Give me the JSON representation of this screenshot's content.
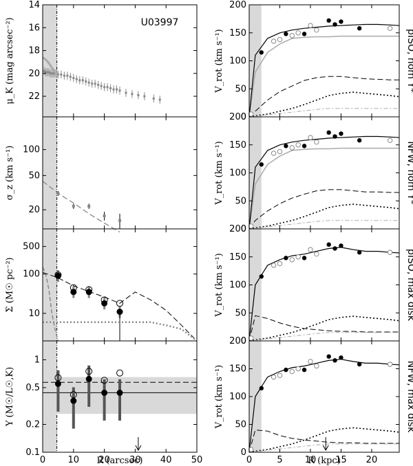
{
  "chart_data": {
    "type": "multi-panel scatter/line",
    "galaxy_id": "U03997",
    "colors": {
      "shade": "#d9d9d9",
      "gray_points": "#888888",
      "light_gray": "#aaaaaa",
      "black": "#000000"
    },
    "left_panels": [
      {
        "id": "mu",
        "ylabel": "μ_K (mag arcsec⁻²)",
        "y_reversed": true,
        "ylim": [
          23.8,
          14
        ],
        "yticks": [
          "14",
          "16",
          "18",
          "20",
          "22"
        ],
        "ytick_values": [
          14,
          16,
          18,
          20,
          22
        ],
        "series": [
          {
            "name": "photometry",
            "x": [
              0.5,
              1,
              1.5,
              2,
              2.5,
              3,
              3.5,
              4,
              4.5,
              5,
              6,
              7,
              8,
              9,
              10,
              11,
              12,
              13,
              14,
              15,
              16,
              17,
              18,
              19,
              20,
              21,
              22,
              23,
              24,
              25,
              27,
              29,
              31,
              33,
              36,
              38
            ],
            "y": [
              19.8,
              19.9,
              19.9,
              19.9,
              20.0,
              20.0,
              20.0,
              20.0,
              20.0,
              20.1,
              20.1,
              20.2,
              20.2,
              20.3,
              20.4,
              20.5,
              20.6,
              20.6,
              20.7,
              20.8,
              20.9,
              20.9,
              21.0,
              21.1,
              21.2,
              21.2,
              21.3,
              21.4,
              21.4,
              21.5,
              21.7,
              21.8,
              21.9,
              22.0,
              22.2,
              22.3
            ]
          },
          {
            "name": "bulge model",
            "x": [
              0,
              1,
              2,
              3,
              4,
              5
            ],
            "y": [
              18.6,
              18.8,
              19.1,
              19.5,
              19.9,
              20.3
            ]
          }
        ]
      },
      {
        "id": "sigma",
        "ylabel": "σ_z (km s⁻¹)",
        "y_scale": "log",
        "ylim": [
          12,
          240
        ],
        "yticks": [
          "20",
          "50",
          "100"
        ],
        "ytick_values": [
          20,
          50,
          100
        ],
        "series": [
          {
            "name": "sigma_z",
            "x": [
              5,
              10,
              15,
              20,
              25
            ],
            "y": [
              31,
              22,
              22,
              17,
              15
            ],
            "err": [
              2,
              1.5,
              1.5,
              2,
              3
            ]
          },
          {
            "name": "model",
            "x": [
              0,
              5,
              10,
              15,
              20,
              25
            ],
            "y": [
              43,
              31,
              24,
              18,
              14,
              11
            ]
          }
        ]
      },
      {
        "id": "Sigma",
        "ylabel": "Σ (M☉ pc⁻²)",
        "y_scale": "log",
        "ylim": [
          2,
          1400
        ],
        "yticks": [
          "10",
          "100",
          "500"
        ],
        "ytick_values": [
          10,
          100,
          500
        ],
        "series": [
          {
            "name": "Sigma_dyn filled",
            "x": [
              5,
              10,
              15,
              20,
              25
            ],
            "y": [
              90,
              35,
              35,
              18,
              11
            ]
          },
          {
            "name": "Sigma_dyn open",
            "x": [
              5,
              10,
              15,
              20,
              25
            ],
            "y": [
              95,
              45,
              40,
              22,
              18
            ]
          },
          {
            "name": "stellar disk",
            "x": [
              0,
              5,
              10,
              15,
              20,
              25,
              30,
              35,
              40,
              45,
              50
            ],
            "y": [
              110,
              80,
              50,
              36,
              26,
              18,
              35,
              22,
              12,
              5,
              2
            ]
          },
          {
            "name": "gas",
            "x": [
              0,
              5,
              10,
              15,
              20,
              25,
              30,
              35,
              40,
              45,
              50
            ],
            "y": [
              6,
              6,
              6,
              6,
              6,
              6,
              6,
              6,
              5,
              4,
              2
            ]
          },
          {
            "name": "bulge",
            "x": [
              0,
              1,
              2,
              3,
              4,
              5
            ],
            "y": [
              150,
              100,
              40,
              10,
              4,
              2
            ]
          }
        ]
      },
      {
        "id": "Upsilon",
        "ylabel": "Υ (M☉/L☉,K)",
        "y_scale": "log",
        "ylim": [
          0.1,
          1.6
        ],
        "yticks": [
          "0.1",
          "0.2",
          "0.5",
          "1"
        ],
        "ytick_values": [
          0.1,
          0.2,
          0.5,
          1
        ],
        "xlabel": "R (arcsec)",
        "xlim": [
          0,
          50
        ],
        "xticks": [
          "0",
          "10",
          "20",
          "30",
          "40",
          "50"
        ],
        "xtick_values": [
          0,
          10,
          20,
          30,
          40,
          50
        ],
        "band": [
          0.26,
          0.65
        ],
        "lines": [
          0.57,
          0.44
        ],
        "arrow_x": 31,
        "series": [
          {
            "name": "Upsilon filled",
            "x": [
              5,
              10,
              15,
              20,
              25
            ],
            "y": [
              0.55,
              0.36,
              0.62,
              0.44,
              0.44
            ]
          },
          {
            "name": "Upsilon open",
            "x": [
              5,
              10,
              15,
              20,
              25
            ],
            "y": [
              0.64,
              0.42,
              0.75,
              0.6,
              0.72
            ]
          }
        ]
      }
    ],
    "right_panels": [
      {
        "id": "piso-nom",
        "label": "pISO, nom Υ*"
      },
      {
        "id": "nfw-nom",
        "label": "NFW, nom Υ*"
      },
      {
        "id": "piso-max",
        "label": "pISO, max disk"
      },
      {
        "id": "nfw-max",
        "label": "NFW, max disk"
      }
    ],
    "right_axes": {
      "ylabel": "V_rot (km s⁻¹)",
      "ylim": [
        0,
        200
      ],
      "yticks": [
        "0",
        "50",
        "100",
        "150",
        "200"
      ],
      "ytick_values": [
        0,
        50,
        100,
        150,
        200
      ],
      "xlabel": "R (kpc)",
      "xlim": [
        0,
        24.5
      ],
      "xticks": [
        "0",
        "5",
        "10",
        "15",
        "20"
      ],
      "xtick_values": [
        0,
        5,
        10,
        15,
        20
      ],
      "shade": [
        0,
        2
      ],
      "arrow_x": 12.5
    },
    "rotation_curve": {
      "x": [
        0.3,
        2,
        4,
        5,
        6,
        7,
        8,
        9,
        10,
        11,
        13,
        14,
        15,
        18,
        23
      ],
      "y": [
        5,
        115,
        135,
        138,
        148,
        145,
        150,
        148,
        163,
        155,
        172,
        165,
        170,
        158,
        158
      ]
    },
    "x_axis_scale_note": "left: R in arcsec; right: R in kpc"
  }
}
